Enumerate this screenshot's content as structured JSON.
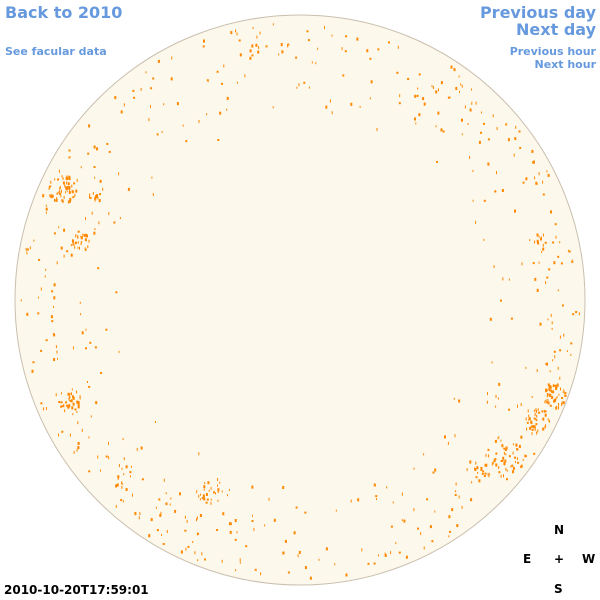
{
  "nav": {
    "back_label": "Back to 2010",
    "facular_label": "See facular data",
    "prev_day_label": "Previous day",
    "next_day_label": "Next day",
    "prev_hour_label": "Previous hour",
    "next_hour_label": "Next hour"
  },
  "compass": {
    "north": "N",
    "east": "E",
    "center": "+",
    "west": "W",
    "south": "S"
  },
  "timestamp": "2010-10-20T17:59:01",
  "colors": {
    "link": "#6699dd",
    "disk_fill": "#fdf8ec",
    "disk_outline": "#c9bfae",
    "facula": "#ff8800"
  }
}
